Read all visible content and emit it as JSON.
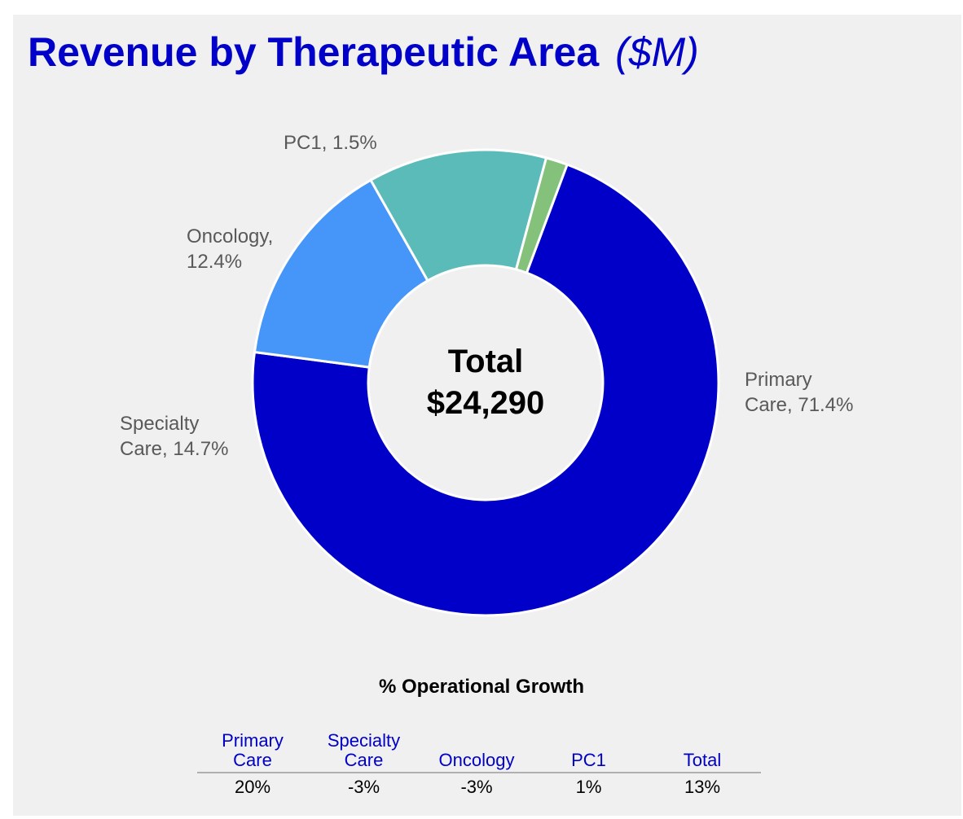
{
  "chart_data": {
    "type": "pie",
    "style": "donut",
    "title": "Revenue by Therapeutic Area",
    "title_unit": "($M)",
    "center": {
      "line1": "Total",
      "line2": "$24,290"
    },
    "total": 24290,
    "slices": [
      {
        "name": "Primary Care",
        "percent": 71.4,
        "label_lines": [
          "Primary",
          "Care, 71.4%"
        ],
        "color": "#0000c8"
      },
      {
        "name": "Specialty Care",
        "percent": 14.7,
        "label_lines": [
          "Specialty",
          "Care, 14.7%"
        ],
        "color": "#4596f8"
      },
      {
        "name": "Oncology",
        "percent": 12.4,
        "label_lines": [
          "Oncology,",
          "12.4%"
        ],
        "color": "#5bbbb9"
      },
      {
        "name": "PC1",
        "percent": 1.5,
        "label_lines": [
          "PC1, 1.5%"
        ],
        "color": "#84c27c"
      }
    ],
    "colors": {
      "title": "#0000c8",
      "labels": "#595959",
      "background": "#f0f0f0"
    }
  },
  "growth_table": {
    "title": "% Operational Growth",
    "headers": [
      [
        "Primary",
        "Care"
      ],
      [
        "Specialty",
        "Care"
      ],
      [
        "Oncology"
      ],
      [
        "PC1"
      ],
      [
        "Total"
      ]
    ],
    "values": [
      "20%",
      "-3%",
      "-3%",
      "1%",
      "13%"
    ]
  }
}
